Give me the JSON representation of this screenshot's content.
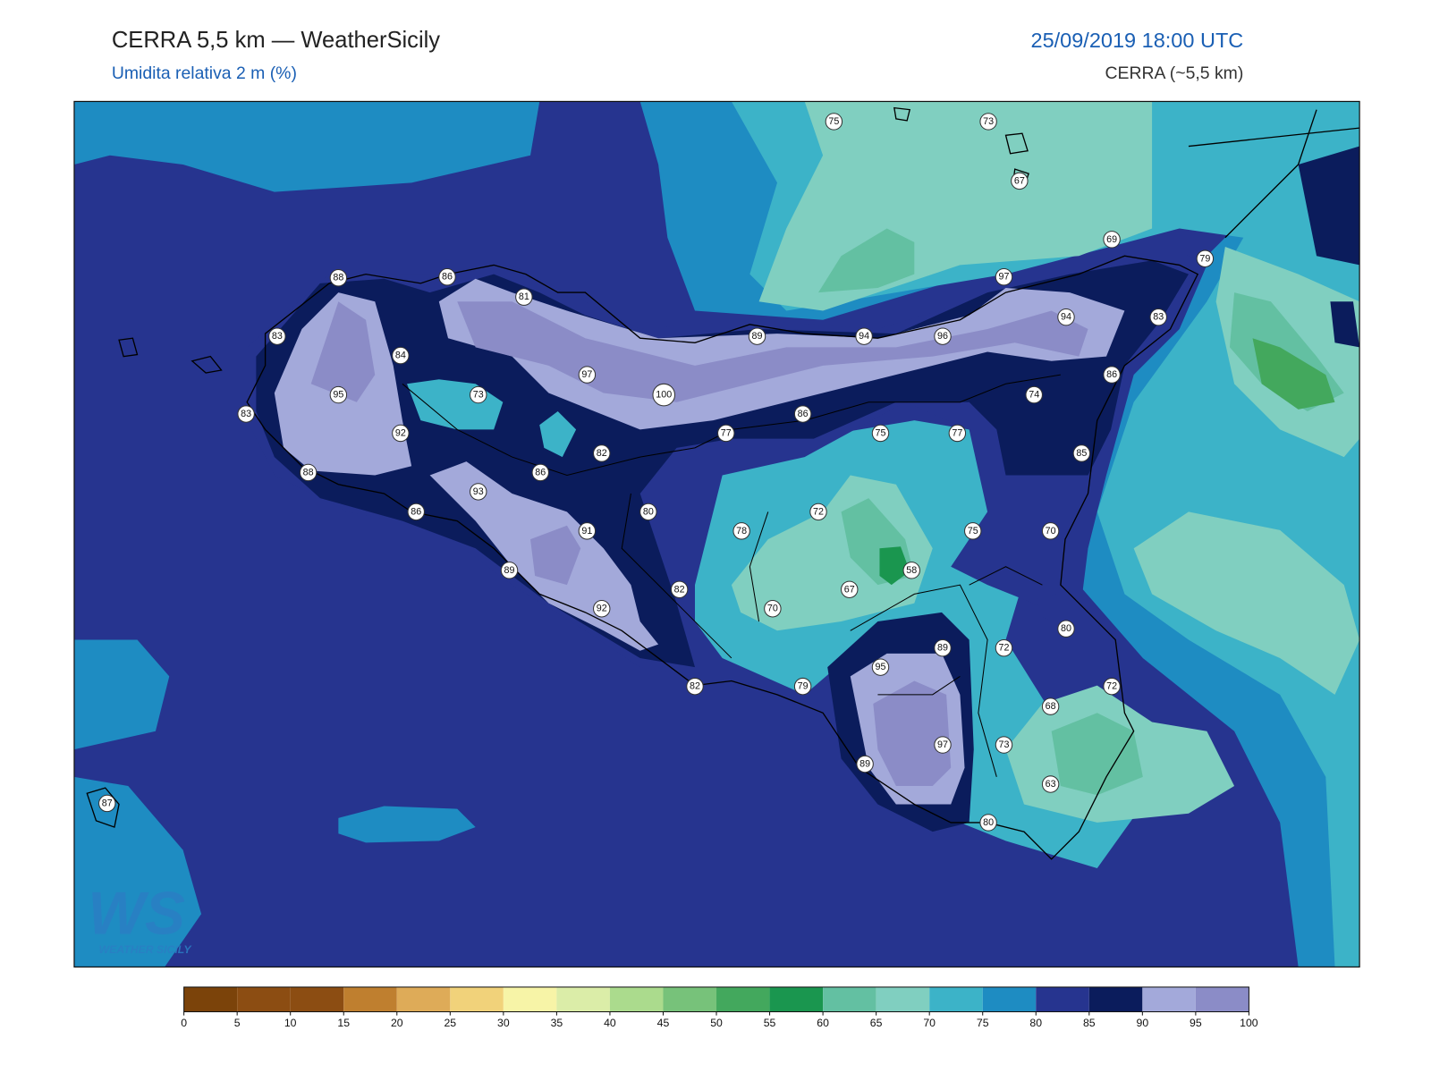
{
  "header": {
    "title": "CERRA 5,5 km — WeatherSicily",
    "subtitle": "Umidita relativa 2 m (%)",
    "datetime": "25/09/2019 18:00 UTC",
    "model": "CERRA (~5,5 km)"
  },
  "stations": [
    75,
    73,
    67,
    69,
    79,
    97,
    88,
    86,
    81,
    94,
    83,
    89,
    94,
    96,
    83,
    84,
    97,
    86,
    95,
    73,
    100,
    74,
    83,
    86,
    77,
    75,
    77,
    92,
    82,
    85,
    88,
    86,
    93,
    80,
    72,
    86,
    91,
    78,
    75,
    70,
    89,
    58,
    82,
    67,
    92,
    70,
    80,
    89,
    72,
    95,
    82,
    79,
    72,
    68,
    97,
    73,
    89,
    63,
    80,
    87
  ],
  "colorbar": {
    "ticks": [
      0,
      5,
      10,
      15,
      20,
      25,
      30,
      35,
      40,
      45,
      50,
      55,
      60,
      65,
      70,
      75,
      80,
      85,
      90,
      95,
      100
    ],
    "colors": [
      "#7b430a",
      "#8c4d12",
      "#8c4d12",
      "#bf7f2f",
      "#deab58",
      "#f1d27a",
      "#f7f4a7",
      "#dbeda8",
      "#abdb8d",
      "#77c27a",
      "#43a85d",
      "#1a964f",
      "#63c0a2",
      "#80cfc0",
      "#3cb3c8",
      "#1e8cc2",
      "#26348f",
      "#0b1c5c",
      "#a3a9da",
      "#8b8cc7"
    ]
  },
  "logo": {
    "mark": "WS",
    "name": "WEATHER SICILY"
  }
}
